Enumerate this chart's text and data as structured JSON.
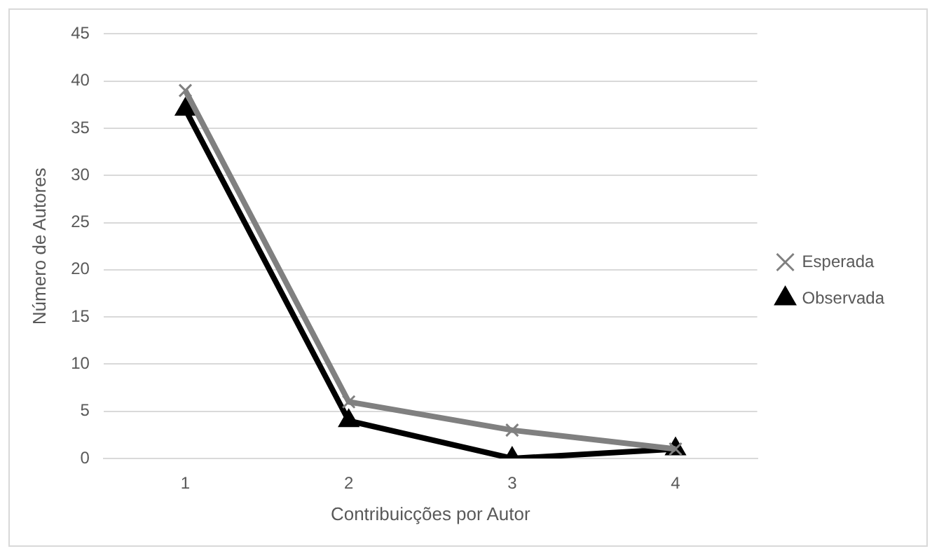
{
  "chart_data": {
    "type": "line",
    "xlabel": "Contribuicções por Autor",
    "ylabel": "Número de Autores",
    "categories": [
      "1",
      "2",
      "3",
      "4"
    ],
    "series": [
      {
        "name": "Observada",
        "color": "#000000",
        "marker": "triangle",
        "values": [
          37,
          4,
          0,
          1
        ]
      },
      {
        "name": "Esperada",
        "color": "#808080",
        "marker": "cross",
        "values": [
          39,
          6,
          3,
          1
        ]
      }
    ],
    "ylim": [
      0,
      45
    ],
    "yticks": [
      0,
      5,
      10,
      15,
      20,
      25,
      30,
      35,
      40,
      45
    ],
    "grid": "y",
    "legend": "right",
    "line_style": "solid"
  }
}
